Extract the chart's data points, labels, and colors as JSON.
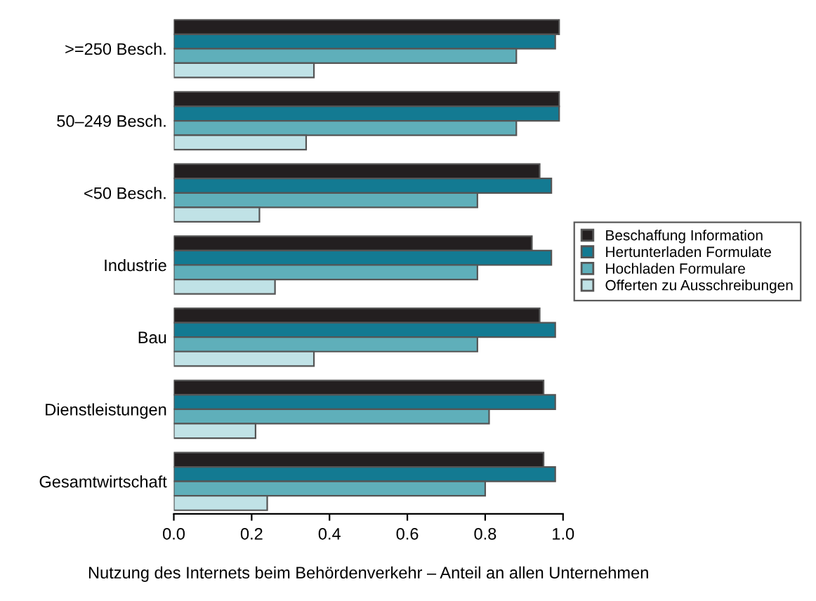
{
  "chart_data": {
    "type": "bar",
    "orientation": "horizontal",
    "xlabel": "Nutzung des Internets beim Behördenverkehr – Anteil an allen Unternehmen",
    "categories": [
      ">=250 Besch.",
      "50–249 Besch.",
      "<50 Besch.",
      "Industrie",
      "Bau",
      "Dienstleistungen",
      "Gesamtwirtschaft"
    ],
    "series": [
      {
        "name": "Beschaffung Information",
        "color": "#231f20",
        "values": [
          0.99,
          0.99,
          0.94,
          0.92,
          0.94,
          0.95,
          0.95
        ]
      },
      {
        "name": "Hertunterladen Formulate",
        "color": "#137a92",
        "values": [
          0.98,
          0.99,
          0.97,
          0.97,
          0.98,
          0.98,
          0.98
        ]
      },
      {
        "name": "Hochladen Formulare",
        "color": "#5fafba",
        "values": [
          0.88,
          0.88,
          0.78,
          0.78,
          0.78,
          0.81,
          0.8
        ]
      },
      {
        "name": "Offerten zu Ausschreibungen",
        "color": "#c0e2e6",
        "values": [
          0.36,
          0.34,
          0.22,
          0.26,
          0.36,
          0.21,
          0.24
        ]
      }
    ],
    "xlim": [
      0,
      1.0
    ],
    "xticks": [
      {
        "value": 0,
        "label": "0.0"
      },
      0.2,
      0.4,
      0.6,
      0.8,
      {
        "value": 1.0,
        "label": "1.0"
      }
    ],
    "grid": false,
    "legend": "right"
  }
}
